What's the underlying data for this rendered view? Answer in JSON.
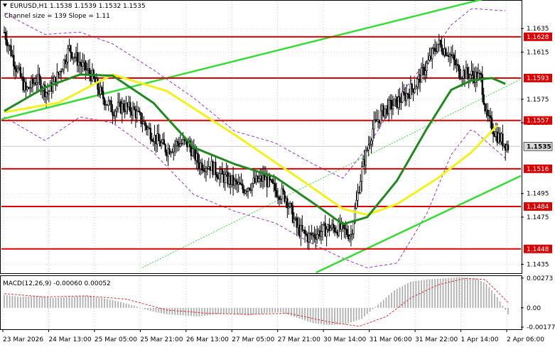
{
  "header": {
    "symbol": "EURUSD,H1",
    "ohlc": "1.1538 1.1539 1.1532 1.1535",
    "channel_info": "Channel size = 139 Slope = 1.11"
  },
  "macd_header": {
    "label": "MACD(12,26,9) -0.00060 0.00052"
  },
  "colors": {
    "candle": "#000000",
    "level_line": "#dd0000",
    "level_label_bg": "#dd0000",
    "channel_line": "#33dd33",
    "ma_fast": "#1f8a1f",
    "ma_slow": "#f2f21a",
    "envelope": "#9b30c8",
    "macd_hist": "#b0b0b0",
    "macd_signal": "#e03030"
  },
  "chart_data": {
    "type": "candlestick",
    "symbol": "EURUSD",
    "timeframe": "H1",
    "ylim": [
      1.1428,
      1.1658
    ],
    "y_ticks": [
      "1.1635",
      "1.1615",
      "1.1575",
      "1.1555",
      "1.1495",
      "1.1475",
      "1.1435"
    ],
    "x_ticks": [
      "23 Mar 2026",
      "24 Mar 13:00",
      "25 Mar 05:00",
      "25 Mar 21:00",
      "26 Mar 13:00",
      "27 Mar 05:00",
      "27 Mar 21:00",
      "30 Mar 14:00",
      "31 Mar 06:00",
      "31 Mar 22:00",
      "1 Apr 14:00",
      "2 Apr 06:00"
    ],
    "levels": [
      {
        "label": "1.1628",
        "value": 1.1628
      },
      {
        "label": "1.1593",
        "value": 1.1593
      },
      {
        "label": "1.1557",
        "value": 1.1557
      },
      {
        "label": "1.1516",
        "value": 1.1516
      },
      {
        "label": "1.1484",
        "value": 1.1484
      },
      {
        "label": "1.1448",
        "value": 1.1448
      }
    ],
    "current_price": {
      "label": "1.1535",
      "value": 1.1535
    },
    "channel": {
      "size": 139,
      "slope": 1.11
    },
    "close_path": [
      [
        0,
        1.1632
      ],
      [
        8,
        1.1605
      ],
      [
        16,
        1.1582
      ],
      [
        24,
        1.1592
      ],
      [
        32,
        1.158
      ],
      [
        40,
        1.1596
      ],
      [
        48,
        1.1618
      ],
      [
        56,
        1.1605
      ],
      [
        64,
        1.1596
      ],
      [
        72,
        1.1578
      ],
      [
        80,
        1.1566
      ],
      [
        88,
        1.1569
      ],
      [
        96,
        1.1565
      ],
      [
        104,
        1.1553
      ],
      [
        112,
        1.1541
      ],
      [
        120,
        1.1532
      ],
      [
        128,
        1.1538
      ],
      [
        136,
        1.1537
      ],
      [
        144,
        1.152
      ],
      [
        152,
        1.1519
      ],
      [
        160,
        1.151
      ],
      [
        168,
        1.1505
      ],
      [
        176,
        1.1499
      ],
      [
        184,
        1.1504
      ],
      [
        192,
        1.1508
      ],
      [
        200,
        1.1498
      ],
      [
        208,
        1.1492
      ],
      [
        216,
        1.1466
      ],
      [
        224,
        1.1458
      ],
      [
        232,
        1.1462
      ],
      [
        240,
        1.1466
      ],
      [
        248,
        1.1465
      ],
      [
        256,
        1.146
      ],
      [
        264,
        1.1515
      ],
      [
        272,
        1.155
      ],
      [
        280,
        1.1566
      ],
      [
        288,
        1.1571
      ],
      [
        296,
        1.1578
      ],
      [
        304,
        1.1588
      ],
      [
        312,
        1.1604
      ],
      [
        320,
        1.1622
      ],
      [
        328,
        1.1615
      ],
      [
        336,
        1.1598
      ],
      [
        344,
        1.1596
      ],
      [
        352,
        1.1593
      ],
      [
        356,
        1.156
      ],
      [
        364,
        1.1544
      ],
      [
        372,
        1.1535
      ]
    ],
    "ma_fast": [
      [
        0,
        1.1565
      ],
      [
        30,
        1.1585
      ],
      [
        56,
        1.1596
      ],
      [
        80,
        1.1595
      ],
      [
        110,
        1.1572
      ],
      [
        140,
        1.1534
      ],
      [
        170,
        1.152
      ],
      [
        200,
        1.1509
      ],
      [
        228,
        1.1487
      ],
      [
        250,
        1.1469
      ],
      [
        268,
        1.1475
      ],
      [
        290,
        1.1506
      ],
      [
        312,
        1.155
      ],
      [
        330,
        1.1583
      ],
      [
        345,
        1.1591
      ],
      [
        360,
        1.1593
      ],
      [
        370,
        1.1588
      ]
    ],
    "ma_slow": [
      [
        0,
        1.1564
      ],
      [
        40,
        1.1572
      ],
      [
        80,
        1.1596
      ],
      [
        120,
        1.1582
      ],
      [
        170,
        1.1545
      ],
      [
        220,
        1.1506
      ],
      [
        250,
        1.1482
      ],
      [
        268,
        1.1477
      ],
      [
        290,
        1.1486
      ],
      [
        320,
        1.1508
      ],
      [
        345,
        1.153
      ],
      [
        365,
        1.1554
      ]
    ],
    "envelope_upper": [
      [
        0,
        1.1648
      ],
      [
        30,
        1.163
      ],
      [
        56,
        1.1632
      ],
      [
        80,
        1.1622
      ],
      [
        110,
        1.16
      ],
      [
        140,
        1.1576
      ],
      [
        170,
        1.1548
      ],
      [
        200,
        1.1538
      ],
      [
        228,
        1.152
      ],
      [
        250,
        1.1508
      ],
      [
        268,
        1.1534
      ],
      [
        290,
        1.1575
      ],
      [
        312,
        1.1608
      ],
      [
        330,
        1.1638
      ],
      [
        345,
        1.1652
      ],
      [
        370,
        1.165
      ]
    ],
    "envelope_lower": [
      [
        0,
        1.156
      ],
      [
        30,
        1.154
      ],
      [
        56,
        1.156
      ],
      [
        80,
        1.1555
      ],
      [
        110,
        1.153
      ],
      [
        140,
        1.1494
      ],
      [
        170,
        1.148
      ],
      [
        200,
        1.147
      ],
      [
        228,
        1.1452
      ],
      [
        250,
        1.144
      ],
      [
        268,
        1.1432
      ],
      [
        290,
        1.1436
      ],
      [
        312,
        1.1478
      ],
      [
        330,
        1.1528
      ],
      [
        345,
        1.155
      ],
      [
        370,
        1.1525
      ]
    ],
    "macd": {
      "params": "12,26,9",
      "main": -0.0006,
      "signal": 0.00052,
      "ylim": [
        -0.0019,
        0.00285
      ],
      "y_ticks": [
        "0.00273",
        "0.00",
        "-0.00177"
      ],
      "hist": [
        [
          0,
          0.0012
        ],
        [
          12,
          0.001
        ],
        [
          24,
          0.0011
        ],
        [
          36,
          0.0009
        ],
        [
          48,
          0.001
        ],
        [
          60,
          0.0011
        ],
        [
          72,
          0.0009
        ],
        [
          84,
          0.0006
        ],
        [
          96,
          0.0002
        ],
        [
          108,
          -0.0003
        ],
        [
          120,
          -0.0006
        ],
        [
          132,
          -0.0007
        ],
        [
          144,
          -0.0008
        ],
        [
          156,
          -0.0006
        ],
        [
          168,
          -0.0005
        ],
        [
          180,
          -0.0007
        ],
        [
          192,
          -0.0005
        ],
        [
          204,
          -0.0004
        ],
        [
          216,
          -0.0009
        ],
        [
          228,
          -0.0014
        ],
        [
          240,
          -0.0016
        ],
        [
          252,
          -0.0015
        ],
        [
          264,
          -0.001
        ],
        [
          276,
          0.0003
        ],
        [
          288,
          0.0016
        ],
        [
          300,
          0.0024
        ],
        [
          312,
          0.0026
        ],
        [
          324,
          0.0027
        ],
        [
          336,
          0.0028
        ],
        [
          348,
          0.0027
        ],
        [
          356,
          0.0022
        ],
        [
          364,
          0.001
        ],
        [
          372,
          -0.0006
        ]
      ],
      "signal_line": [
        [
          0,
          0.0013
        ],
        [
          30,
          0.001
        ],
        [
          60,
          0.0011
        ],
        [
          90,
          0.0008
        ],
        [
          120,
          -0.0002
        ],
        [
          150,
          -0.0005
        ],
        [
          180,
          -0.0006
        ],
        [
          210,
          -0.0005
        ],
        [
          240,
          -0.0013
        ],
        [
          262,
          -0.0017
        ],
        [
          282,
          -0.0008
        ],
        [
          300,
          0.0009
        ],
        [
          320,
          0.0021
        ],
        [
          340,
          0.0027
        ],
        [
          355,
          0.0026
        ],
        [
          372,
          0.0005
        ]
      ]
    }
  }
}
